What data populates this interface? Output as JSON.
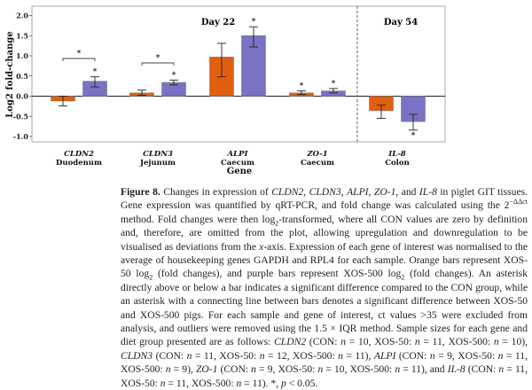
{
  "chart_data": {
    "type": "bar",
    "xlabel": "Gene",
    "ylabel": "Log2 fold-change",
    "ylim": [
      -1.15,
      2.1
    ],
    "yticks": [
      "2.0",
      "1.5",
      "1.0",
      "0.5",
      "0.0",
      "-0.5",
      "-1.0"
    ],
    "ytick_values": [
      2.0,
      1.5,
      1.0,
      0.5,
      0.0,
      -0.5,
      -1.0
    ],
    "grid": false,
    "panels": [
      {
        "label": "Day 22",
        "categories": [
          0,
          1,
          2,
          3
        ]
      },
      {
        "label": "Day 54",
        "categories": [
          4
        ]
      }
    ],
    "categories": [
      {
        "gene": "CLDN2",
        "tissue": "Duodenum"
      },
      {
        "gene": "CLDN3",
        "tissue": "Jejunum"
      },
      {
        "gene": "ALPI",
        "tissue": "Caecum"
      },
      {
        "gene": "ZO-1",
        "tissue": "Caecum"
      },
      {
        "gene": "IL-8",
        "tissue": "Colon"
      }
    ],
    "series": [
      {
        "color": "#e06010",
        "values": [
          -0.12,
          0.08,
          0.97,
          0.08,
          -0.36
        ],
        "err_low": [
          -0.24,
          0.02,
          0.48,
          0.04,
          -0.55
        ],
        "err_high": [
          0.0,
          0.15,
          1.31,
          0.13,
          -0.22
        ],
        "significant": [
          false,
          false,
          false,
          true,
          false
        ]
      },
      {
        "color": "#7a72c4",
        "values": [
          0.37,
          0.34,
          1.5,
          0.13,
          -0.63
        ],
        "err_low": [
          0.23,
          0.28,
          1.22,
          0.08,
          -0.84
        ],
        "err_high": [
          0.48,
          0.4,
          1.72,
          0.19,
          -0.45
        ],
        "significant": [
          true,
          true,
          true,
          true,
          true
        ]
      }
    ],
    "between_group_significance": [
      true,
      true,
      false,
      false,
      false
    ],
    "significance_marker": "*"
  },
  "caption": [
    {
      "t": "Figure 8.",
      "b": true
    },
    {
      "t": " Changes in expression of "
    },
    {
      "t": "CLDN2",
      "i": true
    },
    {
      "t": ", "
    },
    {
      "t": "CLDN3",
      "i": true
    },
    {
      "t": ", "
    },
    {
      "t": "ALPI",
      "i": true
    },
    {
      "t": ", "
    },
    {
      "t": "ZO-1",
      "i": true
    },
    {
      "t": ", and "
    },
    {
      "t": "IL-8",
      "i": true
    },
    {
      "t": " in piglet GIT tissues. Gene expression was quantified by qRT-PCR, and fold change was calculated using the 2"
    },
    {
      "t": "−ΔΔct",
      "sup": true
    },
    {
      "t": " method. Fold changes were then log"
    },
    {
      "t": "2",
      "sub": true
    },
    {
      "t": "-transformed, where all CON values are zero by definition and, therefore, are omitted from the plot, allowing upregulation and downregulation to be visualised as deviations from the "
    },
    {
      "t": "x",
      "i": true
    },
    {
      "t": "-axis. Expression of each gene of interest was normalised to the average of housekeeping genes GAPDH and RPL4 for each sample. Orange bars represent XOS-50 log"
    },
    {
      "t": "2",
      "sub": true
    },
    {
      "t": " (fold changes), and purple bars represent XOS-500 log"
    },
    {
      "t": "2",
      "sub": true
    },
    {
      "t": " (fold changes). An asterisk directly above or below a bar indicates a significant difference compared to the CON group, while an asterisk with a connecting line between bars denotes a significant difference between XOS-50 and XOS-500 pigs.  For each sample and gene of interest, ct values >35 were excluded from analysis, and outliers were removed using the 1.5 × IQR method. Sample sizes for each gene and diet group presented are as follows: "
    },
    {
      "t": "CLDN2",
      "i": true
    },
    {
      "t": " (CON: "
    },
    {
      "t": "n",
      "i": true
    },
    {
      "t": " = 10, XOS-50: "
    },
    {
      "t": "n",
      "i": true
    },
    {
      "t": " = 11, XOS-500: "
    },
    {
      "t": "n",
      "i": true
    },
    {
      "t": " = 10), "
    },
    {
      "t": "CLDN3",
      "i": true
    },
    {
      "t": " (CON: "
    },
    {
      "t": "n",
      "i": true
    },
    {
      "t": " = 11, XOS-50: "
    },
    {
      "t": "n",
      "i": true
    },
    {
      "t": " = 12, XOS-500: "
    },
    {
      "t": "n",
      "i": true
    },
    {
      "t": " = 11), "
    },
    {
      "t": "ALPI",
      "i": true
    },
    {
      "t": " (CON: "
    },
    {
      "t": "n",
      "i": true
    },
    {
      "t": " = 9, XOS-50: "
    },
    {
      "t": "n",
      "i": true
    },
    {
      "t": " = 11, XOS-500: "
    },
    {
      "t": "n",
      "i": true
    },
    {
      "t": " = 9), "
    },
    {
      "t": "ZO-1",
      "i": true
    },
    {
      "t": " (CON: "
    },
    {
      "t": "n",
      "i": true
    },
    {
      "t": " = 9, XOS-50: "
    },
    {
      "t": "n",
      "i": true
    },
    {
      "t": " = 10, XOS-500: "
    },
    {
      "t": "n",
      "i": true
    },
    {
      "t": " = 11), and "
    },
    {
      "t": "IL-8",
      "i": true
    },
    {
      "t": " (CON: "
    },
    {
      "t": "n",
      "i": true
    },
    {
      "t": " = 11, XOS-50: "
    },
    {
      "t": "n",
      "i": true
    },
    {
      "t": " = 11, XOS-500: "
    },
    {
      "t": "n",
      "i": true
    },
    {
      "t": " = 11). *, "
    },
    {
      "t": "p",
      "i": true
    },
    {
      "t": " < 0.05."
    }
  ]
}
